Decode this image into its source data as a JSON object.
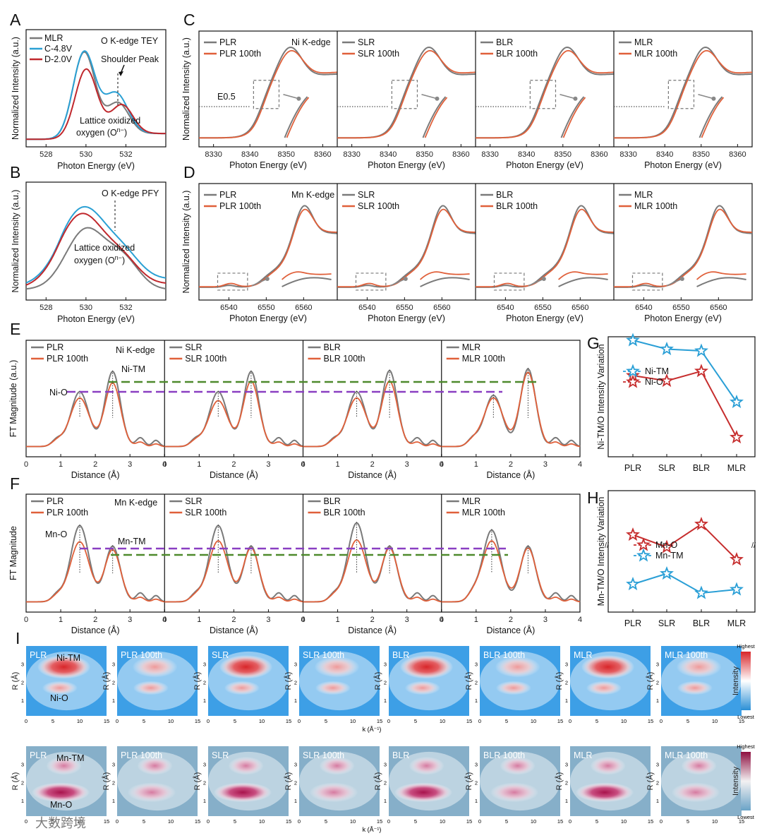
{
  "labels": {
    "A": "A",
    "B": "B",
    "C": "C",
    "D": "D",
    "E": "E",
    "F": "F",
    "G": "G",
    "H": "H",
    "I": "I"
  },
  "colors": {
    "gray": "#7a7a7a",
    "blue": "#2aa0d4",
    "red": "#c0282d",
    "orange": "#e0603a",
    "green": "#4e8a2c",
    "purple": "#8a3fc2",
    "star_blue": "#2a9fd6",
    "star_red": "#c62d2d"
  },
  "panelA": {
    "annotation": "O K-edge TEY",
    "shoulder": "Shoulder Peak",
    "lattice1": "Lattice oxidized",
    "lattice2": "oxygen (O",
    "sup": "n−",
    "close": ")",
    "xlabel": "Photon Energy (eV)",
    "ylabel": "Normalized Intensity (a.u.)",
    "xticks": [
      "528",
      "530",
      "532"
    ],
    "legend": [
      "MLR",
      "C-4.8V",
      "D-2.0V"
    ]
  },
  "panelB": {
    "annotation": "O K-edge PFY",
    "lattice1": "Lattice oxidized",
    "lattice2": "oxygen (O",
    "sup": "n−",
    "close": ")",
    "xlabel": "Photon Energy (eV)",
    "ylabel": "Normalized Intensity (a.u.)",
    "xticks": [
      "528",
      "530",
      "532"
    ]
  },
  "panelC": {
    "edge": "Ni K-edge",
    "e05": "E0.5",
    "xlabel": "Photon Energy (eV)",
    "ylabel": "Normalized Intensity (a.u.)",
    "xticks": [
      "8330",
      "8340",
      "8350",
      "8360"
    ],
    "samples": [
      {
        "a": "PLR",
        "b": "PLR 100th"
      },
      {
        "a": "SLR",
        "b": "SLR 100th"
      },
      {
        "a": "BLR",
        "b": "BLR 100th"
      },
      {
        "a": "MLR",
        "b": "MLR 100th"
      }
    ]
  },
  "panelD": {
    "edge": "Mn K-edge",
    "xlabel": "Photon Energy (eV)",
    "ylabel": "Normalized Intensity (a.u.)",
    "xticks": [
      "6540",
      "6550",
      "6560"
    ],
    "samples": [
      {
        "a": "PLR",
        "b": "PLR 100th"
      },
      {
        "a": "SLR",
        "b": "SLR 100th"
      },
      {
        "a": "BLR",
        "b": "BLR 100th"
      },
      {
        "a": "MLR",
        "b": "MLR 100th"
      }
    ]
  },
  "panelE": {
    "edge": "Ni K-edge",
    "peak1": "Ni-O",
    "peak2": "Ni-TM",
    "xlabel": "Distance (Å)",
    "ylabel": "FT Magnitude (a.u.)",
    "xticks": [
      "0",
      "1",
      "2",
      "3",
      "4"
    ],
    "samples": [
      {
        "a": "PLR",
        "b": "PLR 100th"
      },
      {
        "a": "SLR",
        "b": "SLR 100th"
      },
      {
        "a": "BLR",
        "b": "BLR 100th"
      },
      {
        "a": "MLR",
        "b": "MLR 100th"
      }
    ]
  },
  "panelF": {
    "edge": "Mn K-edge",
    "peak1": "Mn-O",
    "peak2": "Mn-TM",
    "xlabel": "Distance (Å)",
    "ylabel": "FT Magnitude",
    "xticks": [
      "0",
      "1",
      "2",
      "3",
      "4"
    ],
    "samples": [
      {
        "a": "PLR",
        "b": "PLR 100th"
      },
      {
        "a": "SLR",
        "b": "SLR 100th"
      },
      {
        "a": "BLR",
        "b": "BLR 100th"
      },
      {
        "a": "MLR",
        "b": "MLR 100th"
      }
    ]
  },
  "panelG": {
    "ylabel": "Ni-TM/O Intensity Variation",
    "legend": [
      "Ni-TM",
      "Ni-O"
    ]
  },
  "panelH": {
    "ylabel": "Mn-TM/O Intensity Variation",
    "legend": [
      "Mn-O",
      "Mn-TM"
    ]
  },
  "panelI": {
    "row1": [
      "PLR",
      "PLR 100th",
      "SLR",
      "SLR 100th",
      "BLR",
      "BLR 100th",
      "MLR",
      "MLR 100th"
    ],
    "row2": [
      "PLR",
      "PLR 100th",
      "SLR",
      "SLR 100th",
      "BLR",
      "BLR 100th",
      "MLR",
      "MLR 100th"
    ],
    "ni_tm": "Ni-TM",
    "ni_o": "Ni-O",
    "mn_tm": "Mn-TM",
    "mn_o": "Mn-O",
    "xlabel": "k (Å⁻¹)",
    "ylabel": "R (Å)",
    "kticks": [
      "0",
      "5",
      "10",
      "15"
    ],
    "rticks": [
      "1",
      "2",
      "3"
    ],
    "cb_high": "Highest",
    "cb_low": "Lowest",
    "cb_label": "Intensity"
  },
  "watermark": "大数跨境",
  "chart_data": [
    {
      "type": "line",
      "panel": "G",
      "title": "",
      "categories": [
        "PLR",
        "SLR",
        "BLR",
        "MLR"
      ],
      "series": [
        {
          "name": "Ni-TM",
          "values": [
            0.92,
            0.82,
            0.8,
            0.22
          ]
        },
        {
          "name": "Ni-O",
          "values": [
            0.52,
            0.46,
            0.57,
            -0.18
          ]
        }
      ],
      "ylabel": "Ni-TM/O Intensity Variation"
    },
    {
      "type": "line",
      "panel": "H",
      "title": "",
      "categories": [
        "PLR",
        "SLR",
        "BLR",
        "MLR"
      ],
      "series": [
        {
          "name": "Mn-O",
          "values": [
            0.74,
            0.6,
            0.86,
            0.46
          ]
        },
        {
          "name": "Mn-TM",
          "values": [
            0.18,
            0.3,
            0.08,
            0.12
          ]
        }
      ],
      "ylabel": "Mn-TM/O Intensity Variation"
    }
  ]
}
